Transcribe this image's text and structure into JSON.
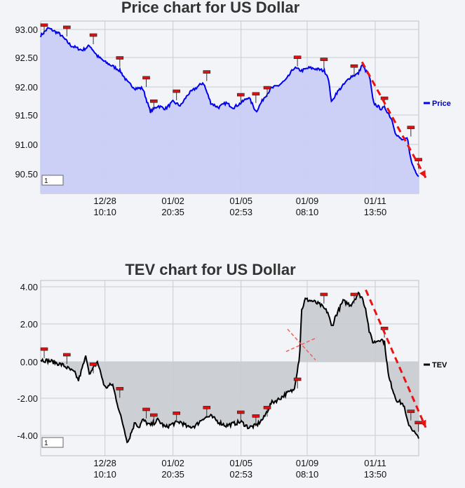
{
  "chart_data": [
    {
      "type": "area",
      "title": "Price chart for US Dollar",
      "legend": "Price",
      "legend_placement": "right",
      "colors": {
        "line": "#0000ee",
        "fill": "#c9cdf6",
        "trend": "#ee1111",
        "marker": "#dd1111"
      },
      "x_ticks": [
        {
          "date": "12/28",
          "time": "10:10",
          "x": 0.17
        },
        {
          "date": "01/02",
          "time": "20:35",
          "x": 0.35
        },
        {
          "date": "01/05",
          "time": "02:53",
          "x": 0.53
        },
        {
          "date": "01/09",
          "time": "08:10",
          "x": 0.705
        },
        {
          "date": "01/11",
          "time": "13:50",
          "x": 0.885
        }
      ],
      "y_ticks": [
        "93.00",
        "92.50",
        "92.00",
        "91.50",
        "91.00",
        "90.50"
      ],
      "ylim": [
        90.15,
        93.1
      ],
      "grid": true,
      "series": [
        {
          "name": "Price",
          "x": [
            0,
            0.02,
            0.05,
            0.08,
            0.11,
            0.13,
            0.15,
            0.17,
            0.19,
            0.21,
            0.23,
            0.25,
            0.27,
            0.29,
            0.31,
            0.33,
            0.35,
            0.37,
            0.39,
            0.41,
            0.43,
            0.45,
            0.47,
            0.49,
            0.51,
            0.53,
            0.55,
            0.57,
            0.59,
            0.61,
            0.63,
            0.65,
            0.66,
            0.67,
            0.69,
            0.71,
            0.73,
            0.75,
            0.76,
            0.77,
            0.78,
            0.8,
            0.82,
            0.84,
            0.85,
            0.86,
            0.87,
            0.88,
            0.9,
            0.91,
            0.92,
            0.93,
            0.94,
            0.96,
            0.97,
            0.98,
            0.99,
            1
          ],
          "y": [
            92.85,
            92.98,
            92.88,
            92.68,
            92.6,
            92.68,
            92.5,
            92.4,
            92.33,
            92.25,
            92.05,
            91.95,
            91.95,
            91.55,
            91.65,
            91.6,
            91.72,
            91.65,
            91.85,
            91.95,
            92.05,
            91.7,
            91.62,
            91.7,
            91.62,
            91.7,
            91.8,
            91.55,
            91.78,
            91.95,
            92.0,
            92.1,
            92.2,
            92.3,
            92.25,
            92.3,
            92.28,
            92.25,
            92.15,
            91.7,
            91.85,
            92.0,
            92.15,
            92.2,
            92.35,
            92.25,
            92.15,
            91.7,
            91.6,
            91.62,
            91.52,
            91.4,
            91.15,
            91.05,
            91.1,
            90.7,
            90.55,
            90.45
          ]
        }
      ],
      "markers": [
        0.0,
        0.06,
        0.13,
        0.2,
        0.27,
        0.29,
        0.35,
        0.43,
        0.52,
        0.56,
        0.59,
        0.67,
        0.74,
        0.82,
        0.9,
        0.97,
        0.99
      ],
      "trend_line": {
        "x": [
          0.85,
          1
        ],
        "y": [
          92.4,
          90.42
        ]
      },
      "input_box": "1"
    },
    {
      "type": "area",
      "title": "TEV chart for US Dollar",
      "legend": "TEV",
      "legend_placement": "right",
      "colors": {
        "line": "#000000",
        "fill": "#c9ccd2",
        "trend": "#ee1111",
        "marker": "#dd1111",
        "cross": "#f06060"
      },
      "x_ticks": [
        {
          "date": "12/28",
          "time": "10:10",
          "x": 0.17
        },
        {
          "date": "01/02",
          "time": "20:35",
          "x": 0.35
        },
        {
          "date": "01/05",
          "time": "02:53",
          "x": 0.53
        },
        {
          "date": "01/09",
          "time": "08:10",
          "x": 0.705
        },
        {
          "date": "01/11",
          "time": "13:50",
          "x": 0.885
        }
      ],
      "y_ticks": [
        "4.00",
        "2.00",
        "0.00",
        "-2.00",
        "-4.00"
      ],
      "ylim": [
        -5.0,
        4.3
      ],
      "grid": true,
      "series": [
        {
          "name": "TEV",
          "x": [
            0,
            0.03,
            0.06,
            0.09,
            0.1,
            0.12,
            0.13,
            0.15,
            0.17,
            0.19,
            0.21,
            0.22,
            0.23,
            0.25,
            0.26,
            0.27,
            0.29,
            0.31,
            0.33,
            0.35,
            0.37,
            0.39,
            0.41,
            0.43,
            0.45,
            0.47,
            0.49,
            0.51,
            0.53,
            0.55,
            0.57,
            0.59,
            0.61,
            0.63,
            0.65,
            0.67,
            0.685,
            0.69,
            0.7,
            0.72,
            0.74,
            0.76,
            0.77,
            0.78,
            0.8,
            0.82,
            0.84,
            0.85,
            0.86,
            0.87,
            0.88,
            0.9,
            0.91,
            0.92,
            0.94,
            0.96,
            0.97,
            0.98,
            0.99,
            1
          ],
          "y": [
            0.1,
            0.0,
            -0.2,
            -0.6,
            -1.0,
            0.3,
            -0.7,
            0.0,
            -1.4,
            -1.2,
            -2.8,
            -3.5,
            -4.3,
            -3.2,
            -3.5,
            -3.1,
            -3.4,
            -3.1,
            -3.5,
            -3.3,
            -3.2,
            -3.5,
            -3.4,
            -3.0,
            -2.9,
            -3.2,
            -3.4,
            -3.3,
            -3.2,
            -3.5,
            -3.4,
            -3.0,
            -2.2,
            -2.0,
            -1.7,
            -1.5,
            0.3,
            2.7,
            3.3,
            3.2,
            3.0,
            2.6,
            1.8,
            2.4,
            3.2,
            3.0,
            3.6,
            3.4,
            2.8,
            1.5,
            1.0,
            1.2,
            1.0,
            -0.8,
            -2.0,
            -2.3,
            -3.2,
            -3.5,
            -3.8,
            -4.1
          ]
        }
      ],
      "markers": [
        0.0,
        0.06,
        0.13,
        0.2,
        0.27,
        0.29,
        0.35,
        0.43,
        0.52,
        0.56,
        0.59,
        0.67,
        0.74,
        0.82,
        0.9,
        0.97,
        0.99
      ],
      "trend_line": {
        "x": [
          0.86,
          1
        ],
        "y": [
          3.8,
          -3.5
        ]
      },
      "input_box": "1"
    }
  ]
}
